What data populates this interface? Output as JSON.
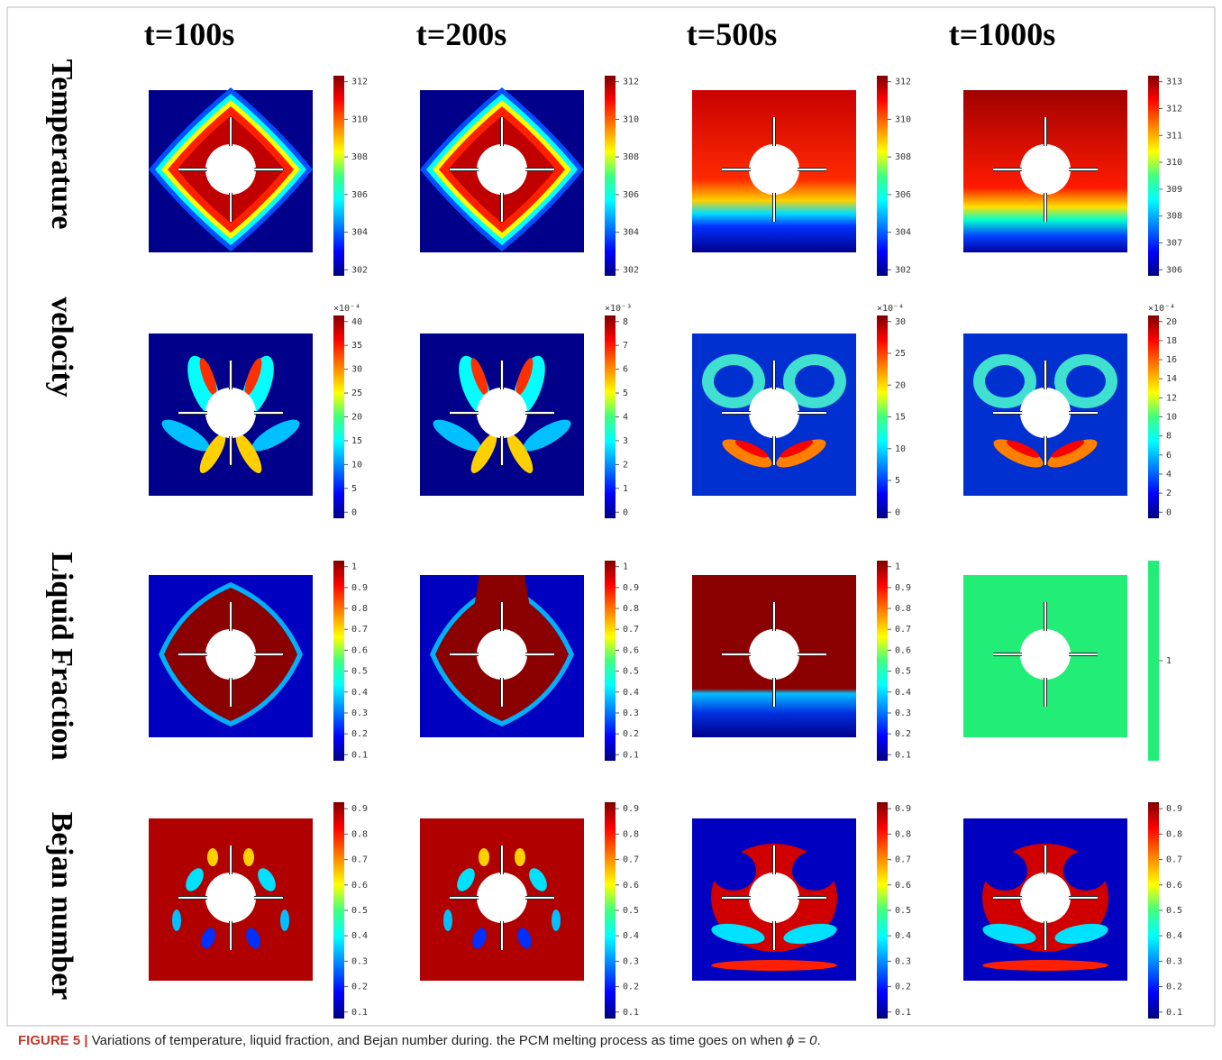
{
  "columns": [
    "t=100s",
    "t=200s",
    "t=500s",
    "t=1000s"
  ],
  "rows": [
    {
      "label": "Temperature",
      "panels": [
        {
          "ticks": [
            "312",
            "310",
            "308",
            "306",
            "304",
            "302"
          ]
        },
        {
          "ticks": [
            "312",
            "310",
            "308",
            "306",
            "304",
            "302"
          ]
        },
        {
          "ticks": [
            "312",
            "310",
            "308",
            "306",
            "304",
            "302"
          ]
        },
        {
          "ticks": [
            "313",
            "312",
            "311",
            "310",
            "309",
            "308",
            "307",
            "306"
          ]
        }
      ]
    },
    {
      "label": "velocity",
      "panels": [
        {
          "exponent": "×10⁻⁴",
          "ticks": [
            "40",
            "35",
            "30",
            "25",
            "20",
            "15",
            "10",
            "5",
            "0"
          ]
        },
        {
          "exponent": "×10⁻³",
          "ticks": [
            "8",
            "7",
            "6",
            "5",
            "4",
            "3",
            "2",
            "1",
            "0"
          ]
        },
        {
          "exponent": "×10⁻⁴",
          "ticks": [
            "30",
            "25",
            "20",
            "15",
            "10",
            "5",
            "0"
          ]
        },
        {
          "exponent": "×10⁻⁴",
          "ticks": [
            "20",
            "18",
            "16",
            "14",
            "12",
            "10",
            "8",
            "6",
            "4",
            "2",
            "0"
          ]
        }
      ]
    },
    {
      "label": "Liquid Fraction",
      "panels": [
        {
          "ticks": [
            "1",
            "0.9",
            "0.8",
            "0.7",
            "0.6",
            "0.5",
            "0.4",
            "0.3",
            "0.2",
            "0.1"
          ]
        },
        {
          "ticks": [
            "1",
            "0.9",
            "0.8",
            "0.7",
            "0.6",
            "0.5",
            "0.4",
            "0.3",
            "0.2",
            "0.1"
          ]
        },
        {
          "ticks": [
            "1",
            "0.9",
            "0.8",
            "0.7",
            "0.6",
            "0.5",
            "0.4",
            "0.3",
            "0.2",
            "0.1"
          ]
        },
        {
          "ticks": [
            "1"
          ]
        }
      ]
    },
    {
      "label": "Bejan number",
      "panels": [
        {
          "ticks": [
            "0.9",
            "0.8",
            "0.7",
            "0.6",
            "0.5",
            "0.4",
            "0.3",
            "0.2",
            "0.1"
          ]
        },
        {
          "ticks": [
            "0.9",
            "0.8",
            "0.7",
            "0.6",
            "0.5",
            "0.4",
            "0.3",
            "0.2",
            "0.1"
          ]
        },
        {
          "ticks": [
            "0.9",
            "0.8",
            "0.7",
            "0.6",
            "0.5",
            "0.4",
            "0.3",
            "0.2",
            "0.1"
          ]
        },
        {
          "ticks": [
            "0.9",
            "0.8",
            "0.7",
            "0.6",
            "0.5",
            "0.4",
            "0.3",
            "0.2",
            "0.1"
          ]
        }
      ]
    }
  ],
  "caption": {
    "label": "FIGURE 5 |",
    "text": " Variations of temperature, liquid fraction, and Bejan number during. the PCM melting process as time goes on when ",
    "math": "ϕ = 0",
    "end": "."
  }
}
